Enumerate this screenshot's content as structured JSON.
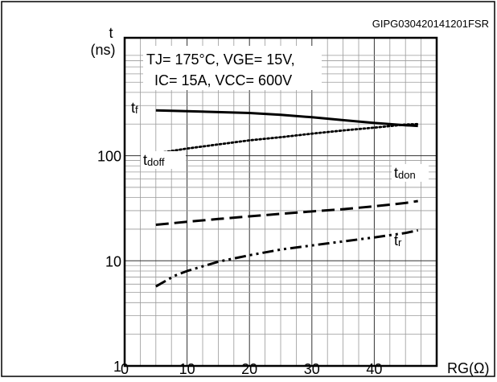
{
  "chart_data": {
    "type": "line",
    "figure_code": "GIPG030420141201FSR",
    "condition_lines": [
      "TJ= 175°C, VGE= 15V,",
      "IC= 15A, VCC= 600V"
    ],
    "y_axis_label_lines": [
      "t",
      "(ns)"
    ],
    "x_axis_label": "RG(Ω)",
    "x_scale": "linear",
    "y_scale": "log",
    "xlim": [
      0,
      50
    ],
    "ylim": [
      1,
      1000
    ],
    "x_ticks": [
      0,
      10,
      20,
      30,
      40
    ],
    "y_ticks": [
      1,
      10,
      100
    ],
    "grid": true,
    "series": [
      {
        "name": "tf",
        "style": "solid",
        "x": [
          5,
          10,
          15,
          20,
          25,
          30,
          35,
          40,
          45,
          47
        ],
        "y": [
          270,
          265,
          260,
          255,
          245,
          232,
          218,
          205,
          195,
          192
        ]
      },
      {
        "name": "tdoff",
        "style": "dotted",
        "x": [
          5,
          10,
          15,
          20,
          25,
          30,
          35,
          40,
          45,
          47
        ],
        "y": [
          105,
          117,
          128,
          140,
          150,
          162,
          174,
          185,
          198,
          200
        ]
      },
      {
        "name": "tdon",
        "style": "dashed",
        "x": [
          5,
          10,
          15,
          20,
          25,
          30,
          35,
          40,
          45,
          47
        ],
        "y": [
          22,
          23.5,
          25,
          26.5,
          28,
          29.5,
          31,
          33,
          35.5,
          37
        ]
      },
      {
        "name": "tr",
        "style": "dashdotdot",
        "x": [
          5,
          8,
          10,
          15,
          20,
          25,
          30,
          35,
          40,
          45,
          47
        ],
        "y": [
          5.7,
          7.2,
          8.0,
          9.8,
          11.3,
          12.8,
          14.0,
          15.3,
          16.7,
          18.4,
          19.5
        ]
      }
    ],
    "series_labels": [
      {
        "series": "tf",
        "main": "t",
        "sub": "f"
      },
      {
        "series": "tdoff",
        "main": "t",
        "sub": "doff"
      },
      {
        "series": "tdon",
        "main": "t",
        "sub": "don"
      },
      {
        "series": "tr",
        "main": "t",
        "sub": "r"
      }
    ]
  }
}
